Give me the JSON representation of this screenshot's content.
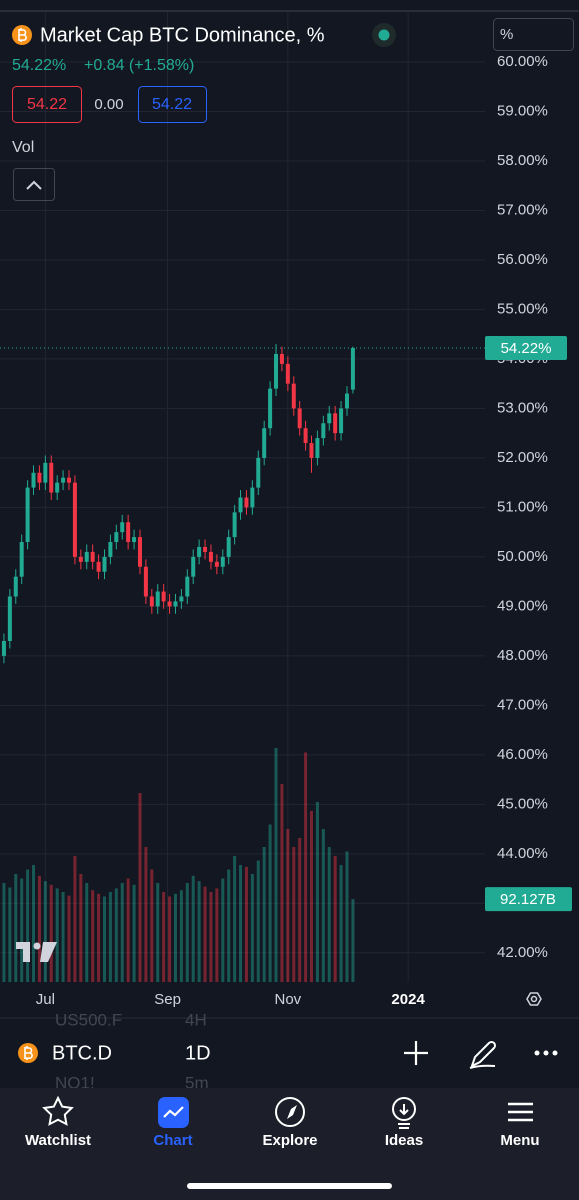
{
  "header": {
    "title": "Market Cap BTC Dominance, %",
    "last_value": "54.22%",
    "change": "+0.84 (+1.58%)",
    "bid": "54.22",
    "spread": "0.00",
    "ask": "54.22",
    "volume_label": "Vol",
    "scale_button": "%"
  },
  "chart_data": {
    "type": "candlestick",
    "x": [
      9,
      12,
      15,
      18,
      21,
      24,
      27,
      30,
      33,
      36,
      39,
      42,
      45,
      48,
      51,
      54,
      57,
      60,
      63,
      66,
      69,
      72,
      75,
      78,
      81,
      84,
      87,
      90,
      93,
      96,
      99,
      102,
      105,
      108,
      111,
      114,
      117,
      120,
      123,
      126,
      129,
      132,
      135,
      138,
      141,
      144,
      147,
      150,
      153,
      156,
      159,
      162,
      165,
      168,
      171,
      174,
      177,
      180,
      183,
      186
    ],
    "open": [
      48.0,
      48.3,
      49.2,
      49.6,
      50.3,
      51.4,
      51.7,
      51.5,
      51.9,
      51.3,
      51.5,
      51.6,
      51.5,
      50.0,
      49.9,
      50.1,
      49.9,
      49.7,
      50.0,
      50.3,
      50.5,
      50.7,
      50.3,
      50.4,
      49.8,
      49.2,
      49.0,
      49.3,
      49.1,
      49.0,
      49.1,
      49.2,
      49.6,
      50.0,
      50.2,
      50.1,
      49.9,
      49.8,
      50.0,
      50.4,
      50.9,
      51.2,
      51.0,
      51.4,
      52.0,
      52.6,
      53.4,
      54.1,
      53.9,
      53.5,
      53.0,
      52.6,
      52.3,
      52.0,
      52.4,
      52.7,
      52.9,
      52.5,
      53.0,
      53.38
    ],
    "high": [
      48.45,
      49.35,
      49.75,
      50.45,
      51.55,
      51.85,
      51.85,
      52.05,
      52.05,
      51.65,
      51.75,
      51.75,
      51.65,
      50.15,
      50.25,
      50.25,
      50.05,
      50.15,
      50.45,
      50.65,
      50.85,
      50.85,
      50.55,
      50.55,
      49.95,
      49.35,
      49.45,
      49.45,
      49.25,
      49.25,
      49.35,
      49.75,
      50.15,
      50.35,
      50.35,
      50.25,
      50.05,
      50.15,
      50.55,
      51.05,
      51.35,
      51.35,
      51.55,
      52.15,
      52.75,
      53.55,
      54.3,
      54.25,
      54.05,
      53.65,
      53.15,
      52.75,
      52.45,
      52.55,
      52.85,
      53.05,
      53.05,
      53.15,
      53.45,
      54.25
    ],
    "low": [
      47.85,
      48.15,
      49.05,
      49.45,
      50.15,
      51.25,
      51.35,
      51.35,
      51.15,
      51.15,
      51.35,
      51.35,
      49.85,
      49.75,
      49.75,
      49.75,
      49.55,
      49.55,
      49.85,
      50.15,
      50.35,
      50.15,
      50.15,
      49.65,
      49.05,
      48.85,
      48.85,
      48.95,
      48.85,
      48.85,
      48.95,
      49.05,
      49.45,
      49.85,
      49.95,
      49.75,
      49.65,
      49.65,
      49.85,
      50.25,
      50.75,
      50.85,
      50.85,
      51.25,
      51.85,
      52.45,
      53.25,
      53.75,
      53.35,
      52.85,
      52.45,
      52.15,
      51.7,
      51.85,
      52.25,
      52.55,
      52.35,
      52.35,
      52.85,
      53.3
    ],
    "close": [
      48.3,
      49.2,
      49.6,
      50.3,
      51.4,
      51.7,
      51.5,
      51.9,
      51.3,
      51.5,
      51.6,
      51.5,
      50.0,
      49.9,
      50.1,
      49.9,
      49.7,
      50.0,
      50.3,
      50.5,
      50.7,
      50.3,
      50.4,
      49.8,
      49.2,
      49.0,
      49.3,
      49.1,
      49.0,
      49.1,
      49.2,
      49.6,
      50.0,
      50.2,
      50.1,
      49.9,
      49.8,
      50.0,
      50.4,
      50.9,
      51.2,
      51.0,
      51.4,
      52.0,
      52.6,
      53.4,
      54.1,
      53.9,
      53.5,
      53.0,
      52.6,
      52.3,
      52.0,
      52.4,
      52.7,
      52.9,
      52.5,
      53.0,
      53.3,
      54.22
    ],
    "volume": [
      110,
      105,
      120,
      115,
      125,
      130,
      118,
      112,
      108,
      104,
      100,
      96,
      140,
      120,
      110,
      102,
      98,
      95,
      100,
      104,
      110,
      115,
      108,
      210,
      150,
      125,
      110,
      100,
      95,
      98,
      102,
      110,
      118,
      112,
      106,
      100,
      104,
      115,
      125,
      140,
      130,
      128,
      120,
      135,
      150,
      175,
      260,
      220,
      170,
      150,
      160,
      255,
      190,
      200,
      170,
      150,
      140,
      130,
      145,
      92.127
    ],
    "volume_lim": [
      0,
      300
    ],
    "up_color": "#22ab94",
    "down_color": "#f23645",
    "xlim": [
      7,
      253
    ],
    "xticks": [
      {
        "value": 30,
        "label": "Jul"
      },
      {
        "value": 92,
        "label": "Sep"
      },
      {
        "value": 153,
        "label": "Nov"
      },
      {
        "value": 214,
        "label": "2024"
      }
    ],
    "ylim": [
      41.41,
      61.01
    ],
    "yticks": [
      {
        "value": 42,
        "label": "42.00%"
      },
      {
        "value": 43,
        "label": "43.00%"
      },
      {
        "value": 44,
        "label": "44.00%"
      },
      {
        "value": 45,
        "label": "45.00%"
      },
      {
        "value": 46,
        "label": "46.00%"
      },
      {
        "value": 47,
        "label": "47.00%"
      },
      {
        "value": 48,
        "label": "48.00%"
      },
      {
        "value": 49,
        "label": "49.00%"
      },
      {
        "value": 50,
        "label": "50.00%"
      },
      {
        "value": 51,
        "label": "51.00%"
      },
      {
        "value": 52,
        "label": "52.00%"
      },
      {
        "value": 53,
        "label": "53.00%"
      },
      {
        "value": 54,
        "label": "54.00%"
      },
      {
        "value": 55,
        "label": "55.00%"
      },
      {
        "value": 56,
        "label": "56.00%"
      },
      {
        "value": 57,
        "label": "57.00%"
      },
      {
        "value": 58,
        "label": "58.00%"
      },
      {
        "value": 59,
        "label": "59.00%"
      },
      {
        "value": 60,
        "label": "60.00%"
      }
    ],
    "price_marker": {
      "value": 54.22,
      "label": "54.22%"
    },
    "volume_marker": {
      "value": 92.127,
      "label": "92.127B"
    },
    "grid": true
  },
  "toolbar": {
    "symbol": "BTC.D",
    "interval": "1D",
    "prev_symbol": "US500.F",
    "prev_interval": "4H",
    "next_symbol": "NQ1!",
    "next_interval": "5m"
  },
  "tabs": [
    "Watchlist",
    "Chart",
    "Explore",
    "Ideas",
    "Menu"
  ]
}
